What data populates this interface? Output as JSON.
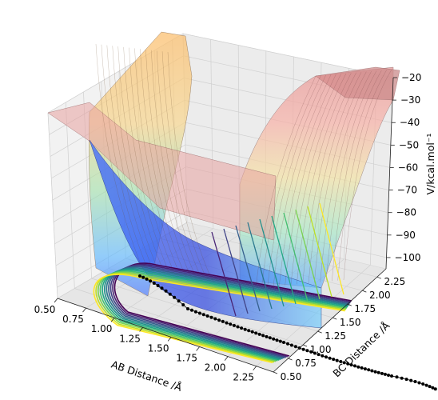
{
  "chart_data": {
    "type": "surface3d",
    "title": "",
    "xlabel": "AB Distance /Å",
    "ylabel": "BC Distance /Å",
    "zlabel": "V/kcal.mol⁻¹",
    "x_ticks": [
      "0.50",
      "0.75",
      "1.00",
      "1.25",
      "1.50",
      "1.75",
      "2.00",
      "2.25"
    ],
    "y_ticks": [
      "0.50",
      "0.75",
      "1.00",
      "1.25",
      "1.50",
      "1.75",
      "2.00",
      "2.25"
    ],
    "z_ticks": [
      "−20",
      "−30",
      "−40",
      "−50",
      "−60",
      "−70",
      "−80",
      "−90",
      "−100"
    ],
    "xlim": [
      0.5,
      2.4
    ],
    "ylim": [
      0.5,
      2.4
    ],
    "zlim": [
      -105,
      -20
    ],
    "grid": true,
    "surface_colormap": "jet",
    "contour_colormap": "viridis",
    "trajectory_color": "#000000",
    "pane_color": "#f0f0f0"
  }
}
